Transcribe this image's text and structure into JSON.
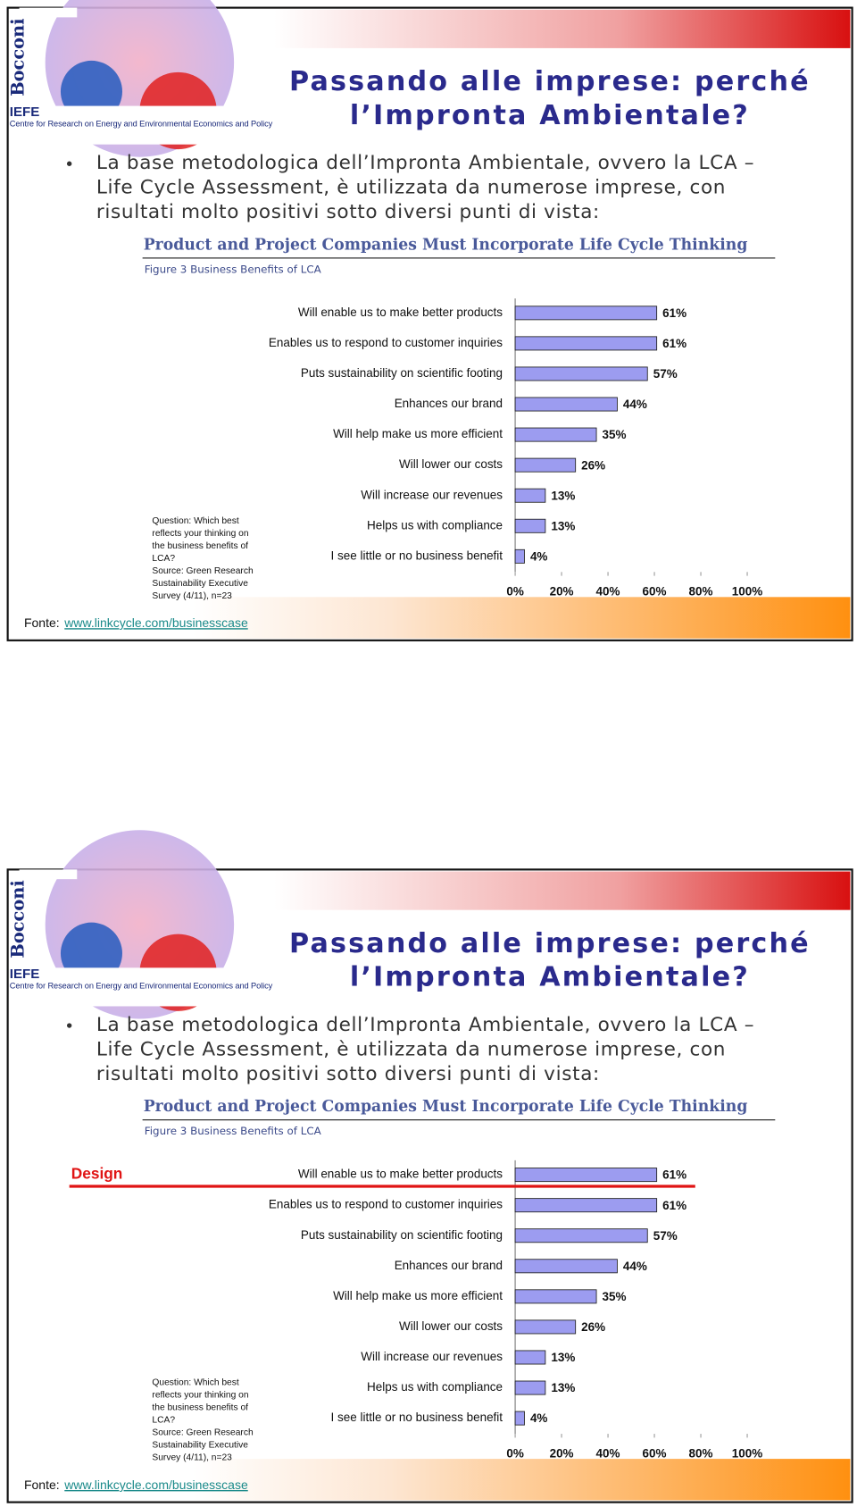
{
  "slides": [
    {
      "logo": {
        "name": "Bocconi",
        "org": "IEFE",
        "org_full": "Centre for Research on Energy and Environmental Economics and Policy"
      },
      "title": [
        "Passando alle imprese: perché",
        "l’Impronta Ambientale?"
      ],
      "bullet": [
        "La base metodologica dell’Impronta Ambientale, ovvero la LCA –",
        "Life Cycle Assessment, è utilizzata da numerose imprese, con",
        "risultati molto positivi sotto diversi punti di vista:"
      ],
      "chart_data": {
        "type": "bar",
        "orientation": "horizontal",
        "title": "Product and Project Companies Must Incorporate Life Cycle Thinking",
        "subtitle": "Figure 3 Business Benefits of LCA",
        "categories": [
          "Will enable us to make better products",
          "Enables us to respond to customer inquiries",
          "Puts sustainability on scientific footing",
          "Enhances our brand",
          "Will help make us more efficient",
          "Will lower our costs",
          "Will increase our revenues",
          "Helps us with compliance",
          "I see little or no business benefit"
        ],
        "values": [
          61,
          61,
          57,
          44,
          35,
          26,
          13,
          13,
          4
        ],
        "value_labels": [
          "61%",
          "61%",
          "57%",
          "44%",
          "35%",
          "26%",
          "13%",
          "13%",
          "4%"
        ],
        "color": "#9c9cf0",
        "xlim": [
          0,
          100
        ],
        "xticks": [
          {
            "value": 0,
            "label": "0%"
          },
          {
            "value": 20,
            "label": "20%"
          },
          {
            "value": 40,
            "label": "40%"
          },
          {
            "value": 60,
            "label": "60%"
          },
          {
            "value": 80,
            "label": "80%"
          },
          {
            "value": 100,
            "label": "100%"
          }
        ],
        "grid": false,
        "note": [
          "Question: Which best",
          "reflects your thinking on",
          "the business benefits of",
          "LCA?",
          " Source: Green Research",
          "Sustainability Executive",
          "Survey (4/11), n=23"
        ]
      },
      "source_label": "Fonte:",
      "source_link": "www.linkcycle.com/businesscase"
    },
    {
      "logo": {
        "name": "Bocconi",
        "org": "IEFE",
        "org_full": "Centre for Research on Energy and Environmental Economics and Policy"
      },
      "title": [
        "Passando alle imprese: perché",
        "l’Impronta Ambientale?"
      ],
      "bullet": [
        "La base metodologica dell’Impronta Ambientale, ovvero la LCA –",
        "Life Cycle Assessment, è utilizzata da numerose imprese, con",
        "risultati molto positivi sotto diversi punti di vista:"
      ],
      "chart_data": {
        "type": "bar",
        "orientation": "horizontal",
        "title": "Product and Project Companies Must Incorporate Life Cycle Thinking",
        "subtitle": "Figure 3 Business Benefits of LCA",
        "categories": [
          "Will enable us to make better products",
          "Enables us to respond to customer inquiries",
          "Puts sustainability on scientific footing",
          "Enhances our brand",
          "Will help make us more efficient",
          "Will lower our costs",
          "Will increase our revenues",
          "Helps us with compliance",
          "I see little or no business benefit"
        ],
        "values": [
          61,
          61,
          57,
          44,
          35,
          26,
          13,
          13,
          4
        ],
        "value_labels": [
          "61%",
          "61%",
          "57%",
          "44%",
          "35%",
          "26%",
          "13%",
          "13%",
          "4%"
        ],
        "color": "#9c9cf0",
        "xlim": [
          0,
          100
        ],
        "xticks": [
          {
            "value": 0,
            "label": "0%"
          },
          {
            "value": 20,
            "label": "20%"
          },
          {
            "value": 40,
            "label": "40%"
          },
          {
            "value": 60,
            "label": "60%"
          },
          {
            "value": 80,
            "label": "80%"
          },
          {
            "value": 100,
            "label": "100%"
          }
        ],
        "grid": false,
        "note": [
          "Question: Which best",
          "reflects your thinking on",
          "the business benefits of",
          "LCA?",
          " Source: Green Research",
          "Sustainability Executive",
          "Survey (4/11), n=23"
        ],
        "annotation": "Design",
        "annotation_color": "#e01414"
      },
      "source_label": "Fonte:",
      "source_link": "www.linkcycle.com/businesscase"
    }
  ]
}
